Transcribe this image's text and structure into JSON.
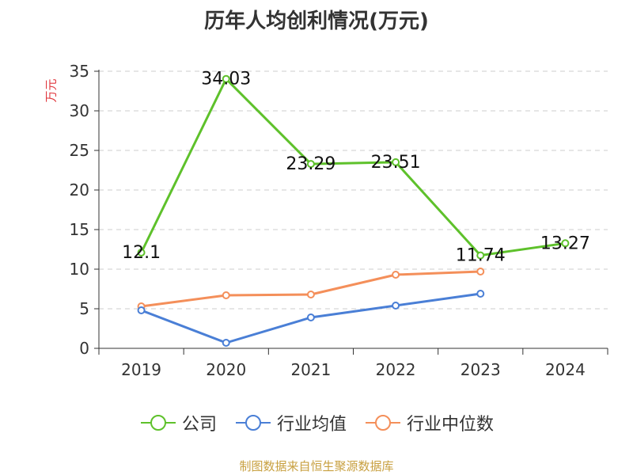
{
  "title": "历年人均创利情况(万元)",
  "source": "制图数据来自恒生聚源数据库",
  "colors": {
    "company": "#5ec12b",
    "industry_avg": "#4a7fd6",
    "industry_median": "#f48f5a",
    "grid": "#cccccc",
    "axis": "#333333"
  },
  "chart_data": {
    "type": "line",
    "title": "历年人均创利情况(万元)",
    "xlabel": "",
    "ylabel": "万元",
    "categories": [
      "2019",
      "2020",
      "2021",
      "2022",
      "2023",
      "2024"
    ],
    "ylim": [
      0,
      35
    ],
    "yticks": [
      0,
      5,
      10,
      15,
      20,
      25,
      30,
      35
    ],
    "grid": true,
    "legend_position": "bottom",
    "series": [
      {
        "name": "公司",
        "values": [
          12.1,
          34.03,
          23.29,
          23.51,
          11.74,
          13.27
        ],
        "labels": [
          "12.1",
          "34.03",
          "23.29",
          "23.51",
          "11.74",
          "13.27"
        ]
      },
      {
        "name": "行业均值",
        "values": [
          4.8,
          0.7,
          3.9,
          5.4,
          6.9,
          null
        ]
      },
      {
        "name": "行业中位数",
        "values": [
          5.3,
          6.7,
          6.8,
          9.3,
          9.7,
          null
        ]
      }
    ]
  }
}
